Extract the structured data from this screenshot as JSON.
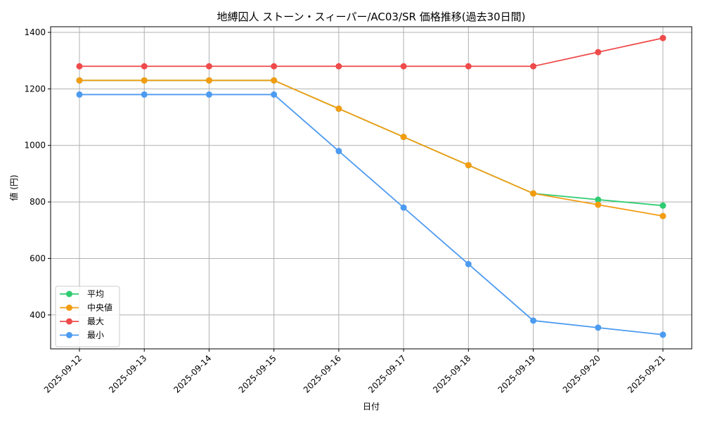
{
  "chart_data": {
    "type": "line",
    "title": "地縛囚人 ストーン・スィーパー/AC03/SR 価格推移(過去30日間)",
    "xlabel": "日付",
    "ylabel": "値 (円)",
    "categories": [
      "2025-09-12",
      "2025-09-13",
      "2025-09-14",
      "2025-09-15",
      "2025-09-16",
      "2025-09-17",
      "2025-09-18",
      "2025-09-19",
      "2025-09-20",
      "2025-09-21"
    ],
    "ylim": [
      280,
      1420
    ],
    "yticks": [
      400,
      600,
      800,
      1000,
      1200,
      1400
    ],
    "grid": true,
    "legend_position": "lower-left",
    "series": [
      {
        "name": "平均",
        "color": "#2ecc71",
        "values": [
          1230,
          1230,
          1230,
          1230,
          1130,
          1030,
          930,
          830,
          808,
          787
        ]
      },
      {
        "name": "中央値",
        "color": "#f39c12",
        "values": [
          1230,
          1230,
          1230,
          1230,
          1130,
          1030,
          930,
          830,
          790,
          750
        ]
      },
      {
        "name": "最大",
        "color": "#ef4b4b",
        "values": [
          1280,
          1280,
          1280,
          1280,
          1280,
          1280,
          1280,
          1280,
          1330,
          1380
        ]
      },
      {
        "name": "最小",
        "color": "#4d9bf0",
        "values": [
          1180,
          1180,
          1180,
          1180,
          980,
          780,
          580,
          380,
          355,
          330
        ]
      }
    ]
  }
}
